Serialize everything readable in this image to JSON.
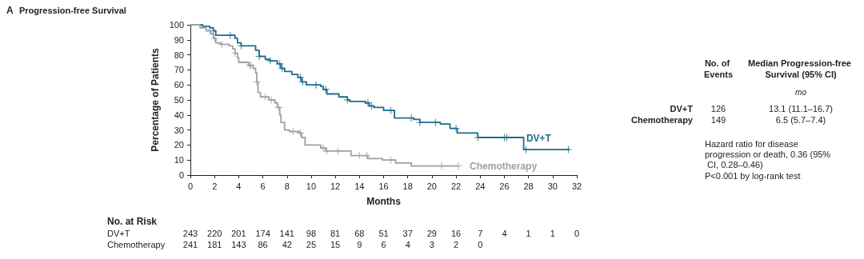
{
  "chart_data": {
    "type": "step",
    "title": "Progression-free Survival",
    "xlabel": "Months",
    "ylabel": "Percentage of Patients",
    "xlim": [
      0,
      32
    ],
    "xticks": [
      0,
      2,
      4,
      6,
      8,
      10,
      12,
      14,
      16,
      18,
      20,
      22,
      24,
      26,
      28,
      30,
      32
    ],
    "ylim": [
      0,
      100
    ],
    "yticks": [
      0,
      10,
      20,
      30,
      40,
      50,
      60,
      70,
      80,
      90,
      100
    ],
    "grid": false,
    "legend": false,
    "marker": "none",
    "line_style": "solid",
    "series": [
      {
        "name": "DV+T",
        "color": "#1b6d8c",
        "x": [
          0,
          1,
          1.6,
          1.9,
          2.1,
          3.7,
          3.9,
          4.2,
          5.4,
          5.7,
          6.2,
          6.6,
          7.2,
          7.5,
          7.8,
          8.4,
          8.9,
          9.2,
          9.6,
          10.8,
          11,
          11.3,
          12.3,
          13,
          13.2,
          14.5,
          14.8,
          15.2,
          16,
          16.9,
          18.5,
          19,
          20.7,
          21.5,
          22.1,
          23.8,
          27.6,
          31.4
        ],
        "values": [
          100,
          99,
          98,
          96,
          93,
          91,
          88,
          86,
          83,
          79,
          77,
          76,
          74,
          71,
          69,
          67,
          65,
          62,
          60,
          59,
          57,
          54,
          52,
          50,
          49,
          48,
          46,
          45,
          43,
          38,
          37,
          35,
          34,
          31,
          28,
          25,
          17,
          17
        ]
      },
      {
        "name": "Chemotherapy",
        "color": "#a0a0a0",
        "x": [
          0,
          0.8,
          1.3,
          1.7,
          1.9,
          2.1,
          2.5,
          3.2,
          3.5,
          3.7,
          3.9,
          4.0,
          4.8,
          5.2,
          5.4,
          5.5,
          5.6,
          5.8,
          6.5,
          7.0,
          7.2,
          7.4,
          7.5,
          7.8,
          8.2,
          9.0,
          9.2,
          9.5,
          10.8,
          11.2,
          13.3,
          14.7,
          15.9,
          17.0,
          18.3,
          22.2
        ],
        "values": [
          100,
          98,
          96,
          94,
          91,
          88,
          87,
          86,
          84,
          81,
          78,
          75,
          73,
          71,
          68,
          62,
          55,
          52,
          50,
          48,
          45,
          40,
          35,
          30,
          29,
          28,
          25,
          20,
          18,
          16,
          13,
          11,
          10,
          8,
          6,
          6
        ]
      },
      {
        "type": "scatter",
        "marker": "cross",
        "color": "#1b6d8c",
        "x": [
          1.9,
          3.3,
          4.2,
          5.7,
          6.6,
          7.4,
          7.6,
          9.1,
          9.3,
          10.4,
          11.2,
          13.0,
          14.7,
          15.0,
          16.6,
          18.3,
          19.0,
          20.3,
          22.0,
          23.8,
          26.0,
          26.2,
          27.8,
          31.3
        ],
        "values": [
          96,
          93,
          86,
          79,
          76,
          74,
          71,
          65,
          62,
          60,
          57,
          50,
          48,
          46,
          43,
          38,
          35,
          35,
          31,
          25,
          25,
          25,
          17,
          17
        ]
      },
      {
        "type": "scatter",
        "marker": "cross",
        "color": "#a0a0a0",
        "x": [
          1.6,
          2.0,
          2.6,
          3.7,
          4.9,
          5.0,
          5.5,
          6.2,
          6.7,
          7.3,
          8.5,
          9.1,
          11.0,
          11.3,
          12.2,
          14.0,
          14.6,
          16.6,
          20.8,
          22.2
        ],
        "values": [
          96,
          91,
          87,
          81,
          73,
          73,
          62,
          52,
          50,
          45,
          29,
          28,
          18,
          16,
          16,
          13,
          13,
          10,
          6,
          6
        ]
      }
    ],
    "annotations": [
      "A",
      "No. at Risk",
      "DV+T",
      "243",
      "220",
      "201",
      "174",
      "141",
      "98",
      "81",
      "68",
      "51",
      "37",
      "29",
      "16",
      "7",
      "4",
      "1",
      "1",
      "0",
      "Chemotherapy",
      "241",
      "181",
      "143",
      "86",
      "42",
      "25",
      "15",
      "9",
      "6",
      "4",
      "3",
      "2",
      "0",
      "No. of Events",
      "Median Progression-free Survival (95% CI)",
      "mo",
      "DV+T",
      "126",
      "13.1 (11.1–16.7)",
      "Chemotherapy",
      "149",
      "6.5 (5.7–7.4)",
      "Hazard ratio for disease progression or death, 0.36 (95% CI, 0.28–0.46)",
      "P<0.001 by log-rank test"
    ]
  }
}
